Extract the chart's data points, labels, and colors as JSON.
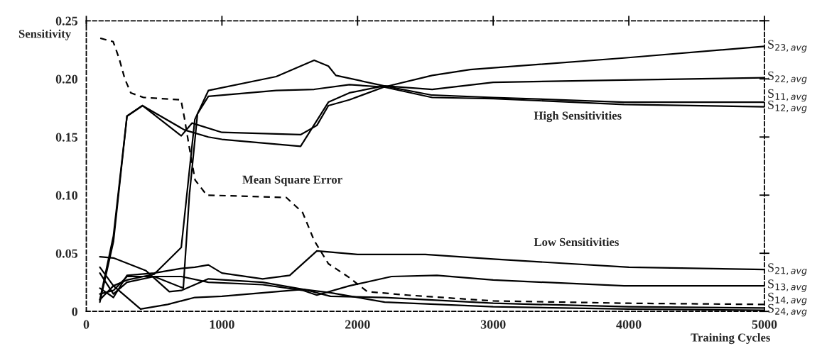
{
  "chart_data": {
    "type": "line",
    "xlabel": "Training Cycles",
    "ylabel": "Sensitivity",
    "xlim": [
      0,
      5000
    ],
    "ylim": [
      0,
      0.25
    ],
    "xticks": [
      0,
      1000,
      2000,
      3000,
      4000,
      5000
    ],
    "yticks": [
      0,
      {
        "value": 0.05,
        "label": "0.05"
      },
      {
        "value": 0.1,
        "label": "0.10"
      },
      {
        "value": 0.15,
        "label": "0.15"
      },
      {
        "value": 0.2,
        "label": "0.20"
      },
      {
        "value": 0.25,
        "label": "0.25"
      }
    ],
    "grid": false,
    "legend": "right",
    "marker": "none",
    "annotations": [
      "High Sensitivities",
      "Low Sensitivities",
      "Mean Square Error"
    ],
    "series": [
      {
        "name": "S$_{23,avg}$",
        "color": "#000000",
        "line_style": "solid",
        "x": [
          100,
          200,
          300,
          414,
          700,
          780,
          1000,
          1580,
          1700,
          1785,
          1940,
          2195,
          2550,
          2830,
          3965,
          5000
        ],
        "values": [
          0.008,
          0.06,
          0.168,
          0.177,
          0.151,
          0.162,
          0.154,
          0.152,
          0.16,
          0.177,
          0.182,
          0.193,
          0.203,
          0.208,
          0.218,
          0.228
        ]
      },
      {
        "name": "S$_{22,avg}$",
        "color": "#000000",
        "line_style": "solid",
        "x": [
          100,
          200,
          300,
          414,
          725,
          900,
          1000,
          1580,
          1785,
          1940,
          2195,
          2550,
          3000,
          3965,
          5000
        ],
        "values": [
          0.01,
          0.065,
          0.168,
          0.177,
          0.156,
          0.15,
          0.148,
          0.142,
          0.18,
          0.188,
          0.194,
          0.191,
          0.197,
          0.199,
          0.201
        ]
      },
      {
        "name": "S$_{11,avg}$",
        "color": "#000000",
        "line_style": "solid",
        "x": [
          100,
          200,
          300,
          500,
          700,
          800,
          900,
          1400,
          1680,
          1785,
          1840,
          2195,
          2550,
          3000,
          3965,
          5000
        ],
        "values": [
          0.01,
          0.022,
          0.027,
          0.032,
          0.055,
          0.165,
          0.19,
          0.202,
          0.216,
          0.211,
          0.203,
          0.194,
          0.186,
          0.184,
          0.18,
          0.18
        ]
      },
      {
        "name": "S$_{12,avg}$",
        "color": "#000000",
        "line_style": "solid",
        "x": [
          100,
          200,
          300,
          500,
          715,
          760,
          820,
          900,
          1400,
          1680,
          1940,
          2195,
          2550,
          3000,
          3965,
          5000
        ],
        "values": [
          0.015,
          0.018,
          0.03,
          0.03,
          0.02,
          0.1,
          0.17,
          0.185,
          0.19,
          0.191,
          0.195,
          0.193,
          0.184,
          0.183,
          0.178,
          0.176
        ]
      },
      {
        "name": "S$_{21,avg}$",
        "color": "#000000",
        "line_style": "solid",
        "x": [
          100,
          200,
          300,
          500,
          700,
          800,
          900,
          1000,
          1300,
          1500,
          1700,
          2000,
          2500,
          3000,
          4000,
          5000
        ],
        "values": [
          0.02,
          0.012,
          0.031,
          0.033,
          0.037,
          0.038,
          0.04,
          0.033,
          0.028,
          0.031,
          0.052,
          0.049,
          0.049,
          0.045,
          0.038,
          0.036
        ]
      },
      {
        "name": "S$_{13,avg}$",
        "color": "#000000",
        "line_style": "solid",
        "x": [
          100,
          200,
          300,
          500,
          700,
          900,
          1300,
          1600,
          1700,
          1940,
          2250,
          2585,
          3000,
          3965,
          5000
        ],
        "values": [
          0.033,
          0.015,
          0.025,
          0.03,
          0.03,
          0.025,
          0.023,
          0.018,
          0.014,
          0.022,
          0.03,
          0.031,
          0.027,
          0.022,
          0.022
        ]
      },
      {
        "color": "#000000",
        "line_style": "dashed",
        "x": [
          103,
          198,
          241,
          284,
          328,
          422,
          698,
          724,
          758,
          802,
          888,
          1474,
          1595,
          1680,
          1785,
          1940,
          2071,
          2370,
          3000,
          4000,
          5000
        ],
        "values": [
          0.235,
          0.232,
          0.218,
          0.2,
          0.188,
          0.184,
          0.182,
          0.166,
          0.142,
          0.113,
          0.1,
          0.098,
          0.085,
          0.061,
          0.041,
          0.029,
          0.017,
          0.014,
          0.009,
          0.007,
          0.006
        ]
      },
      {
        "name": "S$_{14,avg}$",
        "color": "#000000",
        "line_style": "solid",
        "x": [
          100,
          200,
          440,
          612,
          700,
          900,
          1300,
          1600,
          1800,
          2200,
          3000,
          4000,
          5000
        ],
        "values": [
          0.047,
          0.046,
          0.035,
          0.017,
          0.018,
          0.028,
          0.025,
          0.019,
          0.013,
          0.012,
          0.007,
          0.004,
          0.003
        ]
      },
      {
        "name": "S$_{24,avg}$",
        "color": "#000000",
        "line_style": "solid",
        "x": [
          100,
          200,
          400,
          600,
          800,
          1000,
          1600,
          1800,
          2200,
          3000,
          4000,
          5000
        ],
        "values": [
          0.038,
          0.022,
          0.002,
          0.006,
          0.012,
          0.013,
          0.019,
          0.016,
          0.008,
          0.004,
          0.002,
          0.001
        ]
      }
    ]
  }
}
